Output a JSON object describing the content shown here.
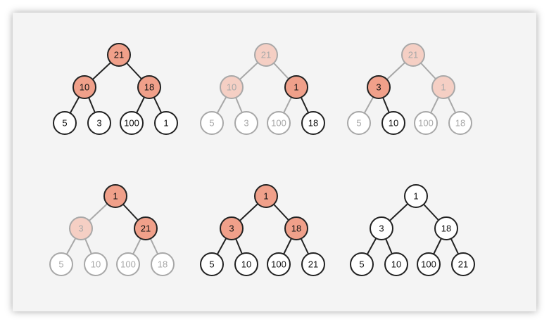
{
  "colors": {
    "active_fill": "#f0a08a",
    "faded_fill": "#f5cfc4",
    "normal_fill": "#ffffff",
    "active_stroke": "#222222",
    "faded_stroke": "#a8a8a8",
    "active_text": "#111111",
    "faded_text": "#a8a8a8",
    "background": "#f4f4f4"
  },
  "trees": [
    {
      "id": "step-1",
      "values": [
        "21",
        "10",
        "18",
        "5",
        "3",
        "100",
        "1"
      ],
      "fill": [
        "hi",
        "hi",
        "hi",
        "w",
        "w",
        "w",
        "w"
      ],
      "faded": [
        false,
        false,
        false,
        false,
        false,
        false,
        false
      ],
      "edges_faded": [
        false,
        false,
        false,
        false,
        false,
        false
      ]
    },
    {
      "id": "step-2",
      "values": [
        "21",
        "10",
        "1",
        "5",
        "3",
        "100",
        "18"
      ],
      "fill": [
        "hi",
        "hi",
        "hi",
        "w",
        "w",
        "w",
        "w"
      ],
      "faded": [
        true,
        true,
        false,
        true,
        true,
        true,
        false
      ],
      "edges_faded": [
        true,
        true,
        true,
        true,
        true,
        false
      ]
    },
    {
      "id": "step-3",
      "values": [
        "21",
        "3",
        "1",
        "5",
        "10",
        "100",
        "18"
      ],
      "fill": [
        "hi",
        "hi",
        "hi",
        "w",
        "w",
        "w",
        "w"
      ],
      "faded": [
        true,
        false,
        true,
        true,
        false,
        true,
        true
      ],
      "edges_faded": [
        true,
        true,
        true,
        false,
        true,
        true
      ]
    },
    {
      "id": "step-4",
      "values": [
        "1",
        "3",
        "21",
        "5",
        "10",
        "100",
        "18"
      ],
      "fill": [
        "hi",
        "hi",
        "hi",
        "w",
        "w",
        "w",
        "w"
      ],
      "faded": [
        false,
        true,
        false,
        true,
        true,
        true,
        true
      ],
      "edges_faded": [
        true,
        false,
        true,
        true,
        true,
        true
      ]
    },
    {
      "id": "step-5",
      "values": [
        "1",
        "3",
        "18",
        "5",
        "10",
        "100",
        "21"
      ],
      "fill": [
        "hi",
        "hi",
        "hi",
        "w",
        "w",
        "w",
        "w"
      ],
      "faded": [
        false,
        false,
        false,
        false,
        false,
        false,
        false
      ],
      "edges_faded": [
        false,
        false,
        false,
        false,
        false,
        false
      ]
    },
    {
      "id": "step-6",
      "values": [
        "1",
        "3",
        "18",
        "5",
        "10",
        "100",
        "21"
      ],
      "fill": [
        "w",
        "w",
        "w",
        "w",
        "w",
        "w",
        "w"
      ],
      "faded": [
        false,
        false,
        false,
        false,
        false,
        false,
        false
      ],
      "edges_faded": [
        false,
        false,
        false,
        false,
        false,
        false
      ]
    }
  ]
}
